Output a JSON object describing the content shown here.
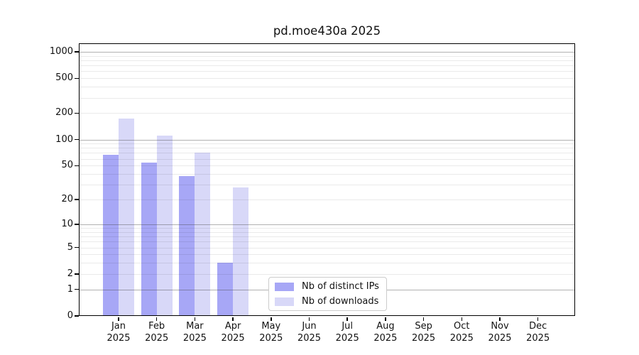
{
  "chart_data": {
    "type": "bar",
    "title": "pd.moe430a 2025",
    "categories": [
      "Jan 2025",
      "Feb 2025",
      "Mar 2025",
      "Apr 2025",
      "May 2025",
      "Jun 2025",
      "Jul 2025",
      "Aug 2025",
      "Sep 2025",
      "Oct 2025",
      "Nov 2025",
      "Dec 2025"
    ],
    "series": [
      {
        "name": "Nb of distinct IPs",
        "color": "#a7a7f6",
        "values": [
          67,
          54,
          38,
          3,
          0,
          0,
          0,
          0,
          0,
          0,
          0,
          0
        ]
      },
      {
        "name": "Nb of downloads",
        "color": "#d8d8f8",
        "values": [
          174,
          110,
          71,
          28,
          0,
          0,
          0,
          0,
          0,
          0,
          0,
          0
        ]
      }
    ],
    "yticks": [
      0,
      1,
      2,
      5,
      10,
      20,
      50,
      100,
      200,
      500,
      1000
    ],
    "ylim": [
      0,
      1000
    ],
    "yscale": "log1p",
    "xlabel": "",
    "ylabel": "",
    "grid": true,
    "legend_position": "inside-bottom-center",
    "colors": {
      "grid_major": "#b5b5b5",
      "grid_minor": "#e9e9e9",
      "spine": "#000000",
      "background": "#ffffff"
    }
  }
}
